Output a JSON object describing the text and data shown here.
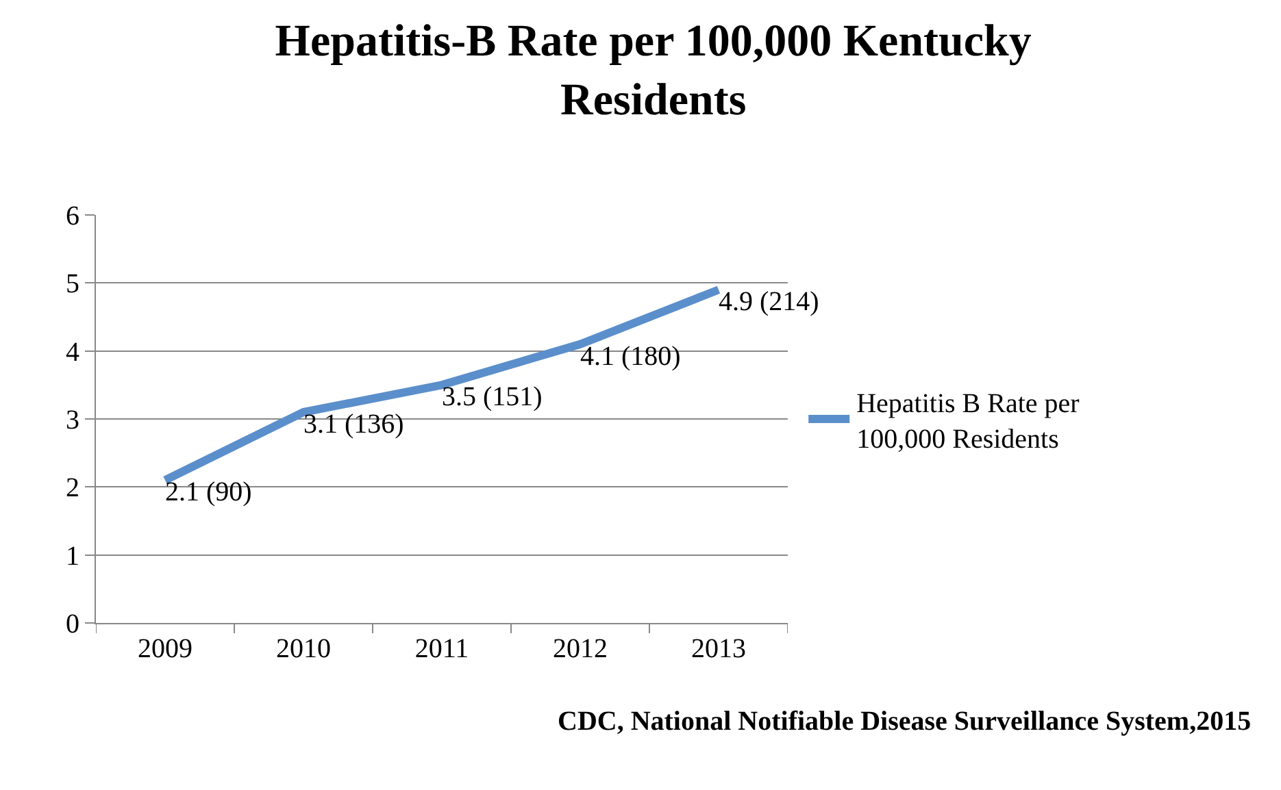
{
  "chart_data": {
    "type": "line",
    "title": "Hepatitis-B Rate per 100,000 Kentucky Residents",
    "categories": [
      "2009",
      "2010",
      "2011",
      "2012",
      "2013"
    ],
    "series": [
      {
        "name": "Hepatitis B Rate per 100,000 Residents",
        "color": "#5b8fcb",
        "values": [
          2.1,
          3.1,
          3.5,
          4.1,
          4.9
        ],
        "value_labels": [
          "2.1 (90)",
          "3.1 (136)",
          "3.5 (151)",
          "4.1 (180)",
          "4.9 (214)"
        ]
      }
    ],
    "ylim": [
      0,
      6
    ],
    "yticks": [
      0,
      1,
      2,
      3,
      4,
      5,
      6
    ],
    "grid": "y",
    "legend": "right",
    "marker": "none",
    "line_style": "solid",
    "annotations": [
      "CDC, National Notifiable Disease Surveillance System,2015"
    ]
  }
}
